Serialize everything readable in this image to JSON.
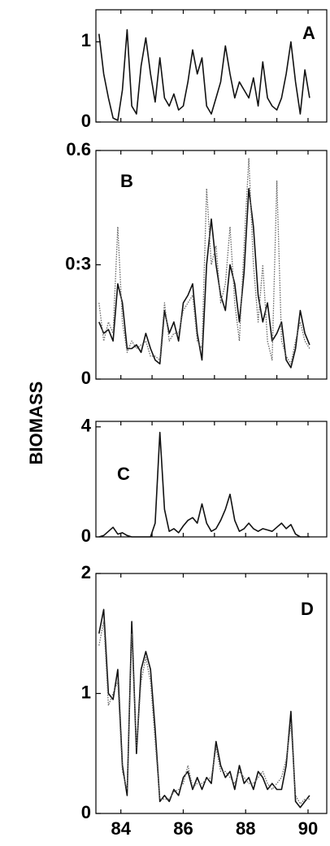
{
  "ylabel": "BIOMASS",
  "chart_data": [
    {
      "type": "line",
      "annotation": "A",
      "x": [
        83.3,
        83.45,
        83.6,
        83.75,
        83.9,
        84.05,
        84.2,
        84.35,
        84.5,
        84.65,
        84.8,
        84.95,
        85.1,
        85.25,
        85.4,
        85.55,
        85.7,
        85.85,
        86.0,
        86.15,
        86.3,
        86.45,
        86.6,
        86.75,
        86.9,
        87.05,
        87.2,
        87.35,
        87.5,
        87.65,
        87.8,
        87.95,
        88.1,
        88.25,
        88.4,
        88.55,
        88.7,
        88.85,
        89.0,
        89.15,
        89.3,
        89.45,
        89.6,
        89.75,
        89.9,
        90.05
      ],
      "series": [
        {
          "color": "#111111",
          "line_style": "solid",
          "values": [
            1.1,
            0.6,
            0.3,
            0.05,
            0.02,
            0.4,
            1.15,
            0.2,
            0.1,
            0.7,
            1.05,
            0.6,
            0.25,
            0.8,
            0.3,
            0.2,
            0.35,
            0.15,
            0.2,
            0.5,
            0.9,
            0.6,
            0.8,
            0.2,
            0.1,
            0.3,
            0.5,
            0.95,
            0.6,
            0.3,
            0.5,
            0.4,
            0.3,
            0.55,
            0.2,
            0.75,
            0.3,
            0.2,
            0.15,
            0.3,
            0.6,
            1.0,
            0.5,
            0.1,
            0.65,
            0.3
          ]
        }
      ],
      "xlim": [
        83.2,
        90.6
      ],
      "ylim": [
        0,
        1.4
      ],
      "xticks": [
        84,
        85,
        86,
        87,
        88,
        89,
        90
      ],
      "yticks": [
        0,
        1
      ],
      "show_xtick_labels": false
    },
    {
      "type": "line",
      "annotation": "B",
      "x": [
        83.3,
        83.45,
        83.6,
        83.75,
        83.9,
        84.05,
        84.2,
        84.35,
        84.5,
        84.65,
        84.8,
        84.95,
        85.1,
        85.25,
        85.4,
        85.55,
        85.7,
        85.85,
        86.0,
        86.15,
        86.3,
        86.45,
        86.6,
        86.75,
        86.9,
        87.05,
        87.2,
        87.35,
        87.5,
        87.65,
        87.8,
        87.95,
        88.1,
        88.25,
        88.4,
        88.55,
        88.7,
        88.85,
        89.0,
        89.15,
        89.3,
        89.45,
        89.6,
        89.75,
        89.9,
        90.05
      ],
      "series": [
        {
          "color": "#111111",
          "line_style": "solid",
          "values": [
            0.15,
            0.12,
            0.13,
            0.1,
            0.25,
            0.2,
            0.08,
            0.08,
            0.09,
            0.07,
            0.12,
            0.08,
            0.05,
            0.04,
            0.18,
            0.12,
            0.15,
            0.1,
            0.2,
            0.22,
            0.25,
            0.12,
            0.05,
            0.3,
            0.42,
            0.3,
            0.22,
            0.18,
            0.3,
            0.25,
            0.15,
            0.28,
            0.5,
            0.4,
            0.22,
            0.15,
            0.2,
            0.1,
            0.12,
            0.15,
            0.05,
            0.03,
            0.08,
            0.18,
            0.12,
            0.09
          ]
        },
        {
          "color": "#666666",
          "line_style": "dotted",
          "values": [
            0.2,
            0.1,
            0.15,
            0.12,
            0.4,
            0.15,
            0.07,
            0.1,
            0.08,
            0.09,
            0.1,
            0.06,
            0.06,
            0.05,
            0.2,
            0.1,
            0.12,
            0.12,
            0.18,
            0.2,
            0.22,
            0.1,
            0.08,
            0.5,
            0.3,
            0.35,
            0.2,
            0.25,
            0.4,
            0.2,
            0.1,
            0.35,
            0.58,
            0.3,
            0.15,
            0.3,
            0.1,
            0.05,
            0.52,
            0.1,
            0.06,
            0.04,
            0.1,
            0.15,
            0.1,
            0.08
          ]
        }
      ],
      "xlim": [
        83.2,
        90.6
      ],
      "ylim": [
        0,
        0.6
      ],
      "xticks": [
        84,
        85,
        86,
        87,
        88,
        89,
        90
      ],
      "yticks": [
        0,
        {
          "value": 0.3,
          "label": "0:3"
        },
        0.6
      ],
      "show_xtick_labels": false
    },
    {
      "type": "line",
      "annotation": "C",
      "x": [
        83.3,
        83.45,
        83.6,
        83.75,
        83.9,
        84.05,
        84.2,
        84.35,
        84.5,
        84.65,
        84.8,
        84.95,
        85.1,
        85.25,
        85.4,
        85.55,
        85.7,
        85.85,
        86.0,
        86.15,
        86.3,
        86.45,
        86.6,
        86.75,
        86.9,
        87.05,
        87.2,
        87.35,
        87.5,
        87.65,
        87.8,
        87.95,
        88.1,
        88.25,
        88.4,
        88.55,
        88.7,
        88.85,
        89.0,
        89.15,
        89.3,
        89.45,
        89.6,
        89.75,
        89.9,
        90.05
      ],
      "series": [
        {
          "color": "#111111",
          "line_style": "solid",
          "values": [
            0,
            0.05,
            0.2,
            0.35,
            0.1,
            0.15,
            0.05,
            0,
            0,
            0,
            0,
            0,
            0.5,
            3.8,
            1.0,
            0.2,
            0.3,
            0.15,
            0.4,
            0.6,
            0.7,
            0.5,
            1.2,
            0.5,
            0.2,
            0.3,
            0.6,
            1.0,
            1.55,
            0.6,
            0.2,
            0.3,
            0.5,
            0.3,
            0.2,
            0.3,
            0.25,
            0.2,
            0.35,
            0.5,
            0.3,
            0.45,
            0.1,
            0,
            0,
            0
          ]
        }
      ],
      "xlim": [
        83.2,
        90.6
      ],
      "ylim": [
        0,
        4.2
      ],
      "xticks": [
        84,
        85,
        86,
        87,
        88,
        89,
        90
      ],
      "yticks": [
        0,
        4
      ],
      "show_xtick_labels": false
    },
    {
      "type": "line",
      "annotation": "D",
      "x": [
        83.3,
        83.45,
        83.6,
        83.75,
        83.9,
        84.05,
        84.2,
        84.35,
        84.5,
        84.65,
        84.8,
        84.95,
        85.1,
        85.25,
        85.4,
        85.55,
        85.7,
        85.85,
        86.0,
        86.15,
        86.3,
        86.45,
        86.6,
        86.75,
        86.9,
        87.05,
        87.2,
        87.35,
        87.5,
        87.65,
        87.8,
        87.95,
        88.1,
        88.25,
        88.4,
        88.55,
        88.7,
        88.85,
        89.0,
        89.15,
        89.3,
        89.45,
        89.6,
        89.75,
        89.9,
        90.05
      ],
      "series": [
        {
          "color": "#111111",
          "line_style": "solid",
          "values": [
            1.5,
            1.7,
            1.0,
            0.95,
            1.2,
            0.4,
            0.15,
            1.6,
            0.5,
            1.2,
            1.35,
            1.2,
            0.7,
            0.1,
            0.15,
            0.1,
            0.2,
            0.15,
            0.3,
            0.35,
            0.2,
            0.3,
            0.2,
            0.3,
            0.25,
            0.6,
            0.4,
            0.3,
            0.35,
            0.2,
            0.4,
            0.25,
            0.3,
            0.2,
            0.35,
            0.3,
            0.2,
            0.25,
            0.2,
            0.2,
            0.4,
            0.85,
            0.1,
            0.05,
            0.1,
            0.15
          ]
        },
        {
          "color": "#666666",
          "line_style": "dotted",
          "values": [
            1.4,
            1.6,
            0.9,
            1.0,
            1.1,
            0.35,
            0.2,
            1.5,
            0.55,
            1.1,
            1.3,
            1.1,
            0.6,
            0.12,
            0.12,
            0.12,
            0.18,
            0.2,
            0.25,
            0.4,
            0.22,
            0.25,
            0.25,
            0.28,
            0.3,
            0.55,
            0.35,
            0.35,
            0.3,
            0.25,
            0.35,
            0.3,
            0.25,
            0.25,
            0.3,
            0.35,
            0.25,
            0.2,
            0.25,
            0.3,
            0.45,
            0.75,
            0.15,
            0.08,
            0.12,
            0.12
          ]
        }
      ],
      "xlim": [
        83.2,
        90.6
      ],
      "ylim": [
        0,
        2
      ],
      "xticks": [
        84,
        86,
        88,
        90
      ],
      "yticks": [
        0,
        1,
        2
      ],
      "show_xtick_labels": true
    }
  ]
}
